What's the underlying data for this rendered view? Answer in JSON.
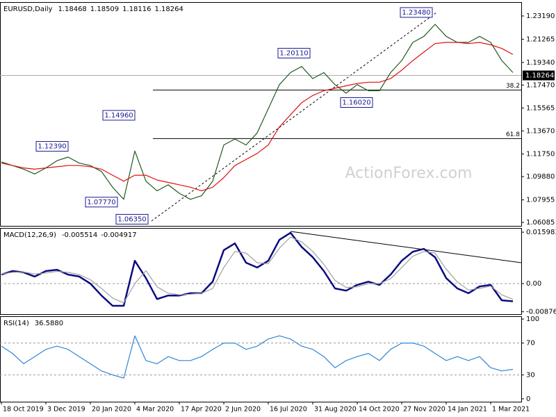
{
  "chart_data": [
    {
      "type": "line",
      "title": "EURUSD,Daily",
      "ohlc": [
        1.18468,
        1.18509,
        1.18116,
        1.18264
      ],
      "categories": [
        "18 Oct 2019",
        null,
        null,
        null,
        "3 Dec 2019",
        null,
        null,
        null,
        "20 Jan 2020",
        null,
        null,
        null,
        "4 Mar 2020",
        null,
        null,
        null,
        "17 Apr 2020",
        null,
        null,
        null,
        "2 Jun 2020",
        null,
        null,
        null,
        "16 Jul 2020",
        null,
        null,
        null,
        "31 Aug 2020",
        null,
        null,
        null,
        "14 Oct 2020",
        null,
        null,
        null,
        "27 Nov 2020",
        null,
        null,
        null,
        "14 Jan 2021",
        null,
        null,
        null,
        "1 Mar 2021",
        null,
        null
      ],
      "series": [
        {
          "color": "#1f5a1f",
          "values": [
            1.111,
            1.108,
            1.105,
            1.101,
            1.106,
            1.112,
            1.115,
            1.11,
            1.108,
            1.103,
            1.09,
            1.08,
            1.12,
            1.095,
            1.087,
            1.092,
            1.085,
            1.08,
            1.083,
            1.095,
            1.125,
            1.13,
            1.125,
            1.135,
            1.155,
            1.175,
            1.185,
            1.19,
            1.18,
            1.185,
            1.175,
            1.168,
            1.175,
            1.17,
            1.17,
            1.185,
            1.195,
            1.21,
            1.215,
            1.225,
            1.215,
            1.21,
            1.21,
            1.215,
            1.21,
            1.195,
            1.185
          ]
        },
        {
          "color": "#e01010",
          "values": [
            1.11,
            1.108,
            1.106,
            1.105,
            1.106,
            1.107,
            1.108,
            1.108,
            1.107,
            1.105,
            1.1,
            1.095,
            1.1,
            1.1,
            1.096,
            1.094,
            1.092,
            1.09,
            1.087,
            1.09,
            1.098,
            1.108,
            1.113,
            1.118,
            1.125,
            1.14,
            1.15,
            1.16,
            1.166,
            1.17,
            1.172,
            1.174,
            1.176,
            1.177,
            1.177,
            1.18,
            1.187,
            1.195,
            1.202,
            1.209,
            1.21,
            1.21,
            1.209,
            1.21,
            1.208,
            1.205,
            1.2
          ]
        }
      ],
      "ylim": [
        1.058,
        1.2434
      ],
      "yticks": [
        {
          "value": 1.2319,
          "label": "1.23190"
        },
        1.21265,
        {
          "value": 1.1934,
          "label": "1.19340"
        },
        {
          "value": 1.1747,
          "label": "1.17470"
        },
        1.15565,
        {
          "value": 1.1367,
          "label": "1.13670"
        },
        {
          "value": 1.1175,
          "label": "1.11750"
        },
        {
          "value": 1.0988,
          "label": "1.09880"
        },
        1.07955,
        1.06085
      ],
      "last_price": 1.18264,
      "annotations": [
        {
          "value": 1.1239,
          "label": "1.12390"
        },
        {
          "value": 1.0777,
          "label": "1.07770"
        },
        {
          "value": 1.1496,
          "label": "1.14960"
        },
        {
          "value": 1.0635,
          "label": "1.06350"
        },
        {
          "value": 1.2011,
          "label": "1.20110"
        },
        {
          "value": 1.1602,
          "label": "1.16020"
        },
        {
          "value": 1.2348,
          "label": "1.23480"
        }
      ],
      "fib_levels": [
        {
          "value": 1.1705,
          "label": "38.2"
        },
        {
          "value": 1.1303,
          "label": "61.8"
        }
      ],
      "watermark": "ActionForex.com"
    },
    {
      "type": "line",
      "title": "MACD(12,26,9)",
      "readout": [
        -0.005514,
        -0.004917
      ],
      "series": [
        {
          "color": "#0a0a80",
          "values": [
            0.0028,
            0.0039,
            0.0035,
            0.0022,
            0.0039,
            0.0043,
            0.0028,
            0.0022,
            0,
            -0.0037,
            -0.0069,
            -0.0069,
            0.0071,
            0.0017,
            -0.0048,
            -0.0037,
            -0.0037,
            -0.003,
            -0.003,
            0.0006,
            0.0104,
            0.0125,
            0.0065,
            0.005,
            0.0071,
            0.0136,
            0.0158,
            0.0114,
            0.0082,
            0.0039,
            -0.0015,
            -0.0022,
            -0.0004,
            0.0006,
            -0.0004,
            0.0028,
            0.0071,
            0.0099,
            0.0108,
            0.0082,
            0.0017,
            -0.0015,
            -0.003,
            -0.0009,
            -0.0004,
            -0.0052,
            -0.0055
          ]
        },
        {
          "color": "#a0a0a0",
          "values": [
            0.003,
            0.0035,
            0.0036,
            0.003,
            0.0033,
            0.0038,
            0.0035,
            0.0028,
            0.0012,
            -0.0015,
            -0.0045,
            -0.006,
            0,
            0.004,
            -0.001,
            -0.003,
            -0.0035,
            -0.0033,
            -0.003,
            -0.0015,
            0.005,
            0.01,
            0.0095,
            0.0065,
            0.0062,
            0.011,
            0.0145,
            0.013,
            0.01,
            0.006,
            0.001,
            -0.0012,
            -0.001,
            0,
            0,
            0.0015,
            0.005,
            0.0085,
            0.01,
            0.0095,
            0.0045,
            0.0005,
            -0.002,
            -0.0015,
            -0.0008,
            -0.0035,
            -0.0049
          ]
        }
      ],
      "ylim": [
        -0.0095,
        0.0173
      ],
      "yticks": [
        0.015983,
        {
          "value": 0,
          "label": "0.00"
        },
        -0.008762
      ],
      "levels": [
        0
      ]
    },
    {
      "type": "line",
      "title": "RSI(14)",
      "readout": [
        {
          "value": 36.588,
          "label": "36.5880"
        }
      ],
      "series": [
        {
          "color": "#2f86d6",
          "values": [
            66,
            57,
            44,
            53,
            62,
            66,
            62,
            53,
            44,
            35,
            30,
            26,
            79,
            48,
            44,
            53,
            48,
            48,
            53,
            62,
            70,
            70,
            62,
            66,
            75,
            79,
            75,
            66,
            62,
            53,
            39,
            48,
            53,
            57,
            48,
            62,
            70,
            70,
            66,
            57,
            48,
            53,
            48,
            53,
            39,
            35,
            37
          ]
        }
      ],
      "ylim": [
        -3.6,
        103.6
      ],
      "yticks": [
        100,
        70,
        30,
        0
      ],
      "levels": [
        70,
        30
      ]
    }
  ]
}
